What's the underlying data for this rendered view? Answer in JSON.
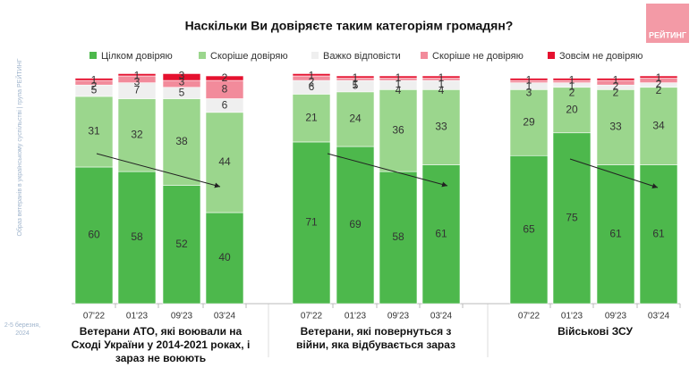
{
  "logo": "РЕЙТИНГ",
  "side_note": "Образ ветеранів в українському суспільстві | група РЕЙТИНГ",
  "date": "2-5 березня, 2024",
  "chart_data": [
    {
      "type": "bar",
      "stacked": true,
      "title": "Наскільки Ви довіряєте таким категоріям громадян?",
      "xlabel": "Ветерани АТО, які воювали на Сході України у 2014-2021 роках, і зараз не воюють",
      "categories": [
        "07'22",
        "01'23",
        "09'23",
        "03'24"
      ],
      "ylim": [
        0,
        100
      ],
      "series": [
        {
          "name": "Цілком довіряю",
          "color": "#4db84c",
          "values": [
            60,
            58,
            52,
            40
          ]
        },
        {
          "name": "Скоріше довіряю",
          "color": "#9bd68d",
          "values": [
            31,
            32,
            38,
            44
          ]
        },
        {
          "name": "Важко відповісти",
          "color": "#efefef",
          "values": [
            5,
            7,
            5,
            6
          ]
        },
        {
          "name": "Скоріше не довіряю",
          "color": "#f28b9b",
          "values": [
            2,
            3,
            3,
            8
          ]
        },
        {
          "name": "Зовсім не довіряю",
          "color": "#e5112f",
          "values": [
            1,
            1,
            3,
            2
          ]
        }
      ]
    },
    {
      "type": "bar",
      "stacked": true,
      "xlabel": "Ветерани, які повернуться з війни, яка відбувається зараз",
      "categories": [
        "07'22",
        "01'23",
        "09'23",
        "03'24"
      ],
      "ylim": [
        0,
        100
      ],
      "series": [
        {
          "color": "#4db84c",
          "values": [
            71,
            69,
            58,
            61
          ]
        },
        {
          "color": "#9bd68d",
          "values": [
            21,
            24,
            36,
            33
          ]
        },
        {
          "color": "#efefef",
          "values": [
            6,
            5,
            4,
            4
          ]
        },
        {
          "color": "#f28b9b",
          "values": [
            2,
            1,
            1,
            1
          ]
        },
        {
          "color": "#e5112f",
          "values": [
            1,
            1,
            1,
            1
          ]
        }
      ]
    },
    {
      "type": "bar",
      "stacked": true,
      "xlabel": "Військові ЗСУ",
      "categories": [
        "07'22",
        "01'23",
        "09'23",
        "03'24"
      ],
      "ylim": [
        0,
        100
      ],
      "series": [
        {
          "color": "#4db84c",
          "values": [
            65,
            75,
            61,
            61
          ]
        },
        {
          "color": "#9bd68d",
          "values": [
            29,
            20,
            33,
            34
          ]
        },
        {
          "color": "#efefef",
          "values": [
            3,
            2,
            2,
            2
          ]
        },
        {
          "color": "#f28b9b",
          "values": [
            1,
            1,
            2,
            2
          ]
        },
        {
          "color": "#e5112f",
          "values": [
            1,
            1,
            1,
            1
          ]
        }
      ]
    }
  ]
}
